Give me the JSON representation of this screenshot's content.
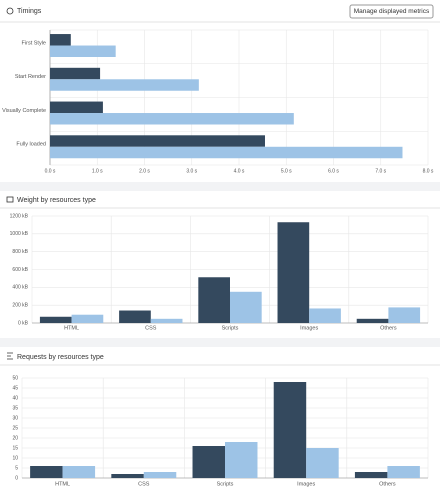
{
  "toolbar": {
    "button": "Manage displayed metrics"
  },
  "chart_data": [
    {
      "type": "bar",
      "orientation": "horizontal",
      "title": "Timings",
      "categories": [
        "First Style",
        "Start Render",
        "Visually Complete",
        "Fully loaded"
      ],
      "series": [
        {
          "color": "#34495e",
          "values": [
            0.44,
            1.06,
            1.12,
            4.55
          ]
        },
        {
          "color": "#9dc3e6",
          "values": [
            1.39,
            3.15,
            5.16,
            7.46
          ]
        }
      ],
      "xlim": [
        0,
        8
      ],
      "xticks": [
        {
          "value": 0,
          "label": "0.0 s"
        },
        {
          "value": 1,
          "label": "1.0 s"
        },
        {
          "value": 2,
          "label": "2.0 s"
        },
        {
          "value": 3,
          "label": "3.0 s"
        },
        {
          "value": 4,
          "label": "4.0 s"
        },
        {
          "value": 5,
          "label": "5.0 s"
        },
        {
          "value": 6,
          "label": "6.0 s"
        },
        {
          "value": 7,
          "label": "7.0 s"
        },
        {
          "value": 8,
          "label": "8.0 s"
        }
      ],
      "grid": true
    },
    {
      "type": "bar",
      "orientation": "vertical",
      "title": "Weight by resources type",
      "categories": [
        "HTML",
        "CSS",
        "Scripts",
        "Images",
        "Others"
      ],
      "series": [
        {
          "color": "#34495e",
          "values": [
            70,
            140,
            513,
            1130,
            47
          ]
        },
        {
          "color": "#9dc3e6",
          "values": [
            93,
            47,
            350,
            163,
            175
          ]
        }
      ],
      "ylim": [
        0,
        1200
      ],
      "yticks": [
        {
          "value": 0,
          "label": "0 kB"
        },
        {
          "value": 200,
          "label": "200 kB"
        },
        {
          "value": 400,
          "label": "400 kB"
        },
        {
          "value": 600,
          "label": "600 kB"
        },
        {
          "value": 800,
          "label": "800 kB"
        },
        {
          "value": 1000,
          "label": "1000 kB"
        },
        {
          "value": 1200,
          "label": "1200 kB"
        }
      ],
      "grid": true
    },
    {
      "type": "bar",
      "orientation": "vertical",
      "title": "Requests by resources type",
      "categories": [
        "HTML",
        "CSS",
        "Scripts",
        "Images",
        "Others"
      ],
      "series": [
        {
          "color": "#34495e",
          "values": [
            6,
            2,
            16,
            48,
            3
          ]
        },
        {
          "color": "#9dc3e6",
          "values": [
            6,
            3,
            18,
            15,
            6
          ]
        }
      ],
      "ylim": [
        0,
        50
      ],
      "yticks": [
        0,
        5,
        10,
        15,
        20,
        25,
        30,
        35,
        40,
        45,
        50
      ],
      "grid": true
    }
  ]
}
